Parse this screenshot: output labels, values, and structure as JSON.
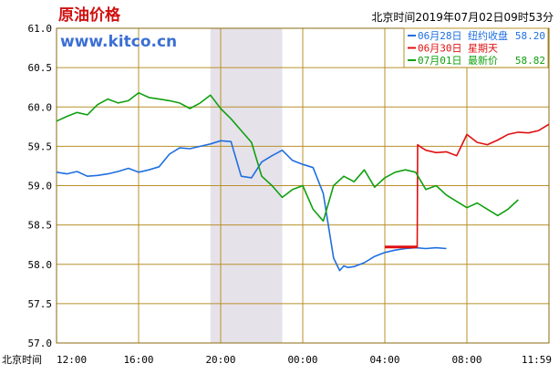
{
  "header": {
    "title": "原油价格",
    "timestamp": "北京时间2019年07月02日09时53分"
  },
  "brand": "www.kitco.cn",
  "colors": {
    "grid": "#b8902a",
    "border": "#8a6a10",
    "shade": "#e6e2ea",
    "blue": "#1f6fe0",
    "red": "#e01010",
    "green": "#10a010",
    "title": "#d01010",
    "brand": "#3b6fd4"
  },
  "chart_data": {
    "type": "line",
    "title": "原油价格",
    "xlabel": "北京时间",
    "ylabel": "",
    "x_tick_labels": [
      "12:00",
      "16:00",
      "20:00",
      "00:00",
      "04:00",
      "08:00",
      "11:59"
    ],
    "x_unit": "hours elapsed from 12:00 Beijing time (0 = 12:00, 24 = 11:59 next day)",
    "xlim": [
      0,
      24
    ],
    "y_tick_labels": [
      "61.0",
      "60.5",
      "60.0",
      "59.5",
      "59.0",
      "58.5",
      "58.0",
      "57.5",
      "57.0"
    ],
    "ylim": [
      57.0,
      61.0
    ],
    "grid": true,
    "shaded_x_range": [
      7.5,
      11.0
    ],
    "legend": {
      "placement": "top-right",
      "entries": [
        {
          "date": "06月28日",
          "label": "纽约收盘",
          "value": "58.20",
          "color_key": "blue"
        },
        {
          "date": "06月30日",
          "label": "星期天",
          "value": "",
          "color_key": "red"
        },
        {
          "date": "07月01日",
          "label": "最新价",
          "value": "58.82",
          "color_key": "green"
        }
      ]
    },
    "series": [
      {
        "name": "06月28日",
        "color_key": "blue",
        "x": [
          0,
          0.5,
          1.0,
          1.5,
          2.0,
          2.5,
          3.0,
          3.5,
          4.0,
          4.5,
          5.0,
          5.5,
          6.0,
          6.5,
          7.0,
          7.5,
          8.0,
          8.5,
          9.0,
          9.5,
          10.0,
          10.5,
          11.0,
          11.5,
          12.0,
          12.5,
          13.0,
          13.5,
          13.8,
          14.0,
          14.2,
          14.5,
          15.0,
          15.5,
          16.0,
          16.5,
          17.0,
          17.5,
          18.0,
          18.5,
          19.0
        ],
        "y": [
          59.17,
          59.15,
          59.18,
          59.12,
          59.13,
          59.15,
          59.18,
          59.22,
          59.17,
          59.2,
          59.24,
          59.4,
          59.48,
          59.47,
          59.5,
          59.53,
          59.57,
          59.56,
          59.12,
          59.1,
          59.3,
          59.38,
          59.45,
          59.32,
          59.27,
          59.23,
          58.9,
          58.08,
          57.92,
          57.98,
          57.96,
          57.97,
          58.02,
          58.1,
          58.15,
          58.18,
          58.2,
          58.21,
          58.2,
          58.21,
          58.2
        ]
      },
      {
        "name": "06月30日",
        "color_key": "red",
        "x": [
          16.0,
          17.5,
          17.58,
          17.6,
          17.7,
          18.0,
          18.5,
          19.0,
          19.5,
          20.0,
          20.5,
          21.0,
          21.5,
          22.0,
          22.5,
          23.0,
          23.5,
          24.0
        ],
        "y": [
          58.22,
          58.22,
          58.22,
          59.52,
          59.5,
          59.45,
          59.42,
          59.43,
          59.38,
          59.65,
          59.55,
          59.52,
          59.58,
          59.65,
          59.68,
          59.67,
          59.7,
          59.78
        ]
      },
      {
        "name": "07月01日",
        "color_key": "green",
        "x": [
          0,
          0.5,
          1.0,
          1.5,
          2.0,
          2.5,
          3.0,
          3.5,
          4.0,
          4.5,
          5.0,
          5.5,
          6.0,
          6.5,
          7.0,
          7.5,
          8.0,
          8.5,
          9.0,
          9.5,
          10.0,
          10.5,
          11.0,
          11.5,
          12.0,
          12.5,
          13.0,
          13.5,
          14.0,
          14.5,
          15.0,
          15.5,
          16.0,
          16.5,
          17.0,
          17.5,
          18.0,
          18.5,
          19.0,
          19.5,
          20.0,
          20.5,
          21.0,
          21.5,
          22.0,
          22.5
        ],
        "y": [
          59.82,
          59.88,
          59.93,
          59.9,
          60.03,
          60.1,
          60.05,
          60.08,
          60.18,
          60.12,
          60.1,
          60.08,
          60.05,
          59.98,
          60.05,
          60.15,
          59.98,
          59.85,
          59.7,
          59.55,
          59.12,
          59.0,
          58.85,
          58.95,
          59.0,
          58.7,
          58.55,
          59.0,
          59.12,
          59.05,
          59.2,
          58.98,
          59.1,
          59.17,
          59.2,
          59.17,
          58.95,
          59.0,
          58.88,
          58.8,
          58.72,
          58.78,
          58.7,
          58.62,
          58.7,
          58.82
        ]
      }
    ]
  }
}
